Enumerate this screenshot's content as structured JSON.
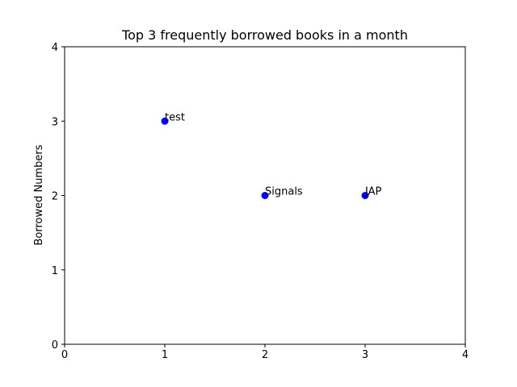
{
  "chart_data": {
    "type": "scatter",
    "title": "Top 3 frequently borrowed books in a month",
    "xlabel": "",
    "ylabel": "Borrowed Numbers",
    "xlim": [
      0,
      4
    ],
    "ylim": [
      0,
      4
    ],
    "xticks": [
      0,
      1,
      2,
      3,
      4
    ],
    "yticks": [
      0,
      1,
      2,
      3,
      4
    ],
    "grid": false,
    "color": "#0000ff",
    "points": [
      {
        "x": 1,
        "y": 3,
        "label": "test"
      },
      {
        "x": 2,
        "y": 2,
        "label": "Signals"
      },
      {
        "x": 3,
        "y": 2,
        "label": "JAP"
      }
    ]
  }
}
